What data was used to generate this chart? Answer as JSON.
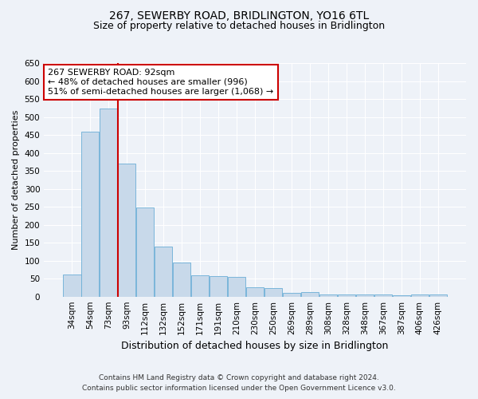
{
  "title": "267, SEWERBY ROAD, BRIDLINGTON, YO16 6TL",
  "subtitle": "Size of property relative to detached houses in Bridlington",
  "xlabel": "Distribution of detached houses by size in Bridlington",
  "ylabel": "Number of detached properties",
  "bar_color": "#c8d9ea",
  "bar_edge_color": "#6aaed6",
  "categories": [
    "34sqm",
    "54sqm",
    "73sqm",
    "93sqm",
    "112sqm",
    "132sqm",
    "152sqm",
    "171sqm",
    "191sqm",
    "210sqm",
    "230sqm",
    "250sqm",
    "269sqm",
    "289sqm",
    "308sqm",
    "328sqm",
    "348sqm",
    "367sqm",
    "387sqm",
    "406sqm",
    "426sqm"
  ],
  "values": [
    62,
    458,
    523,
    370,
    247,
    140,
    95,
    60,
    57,
    55,
    25,
    24,
    10,
    12,
    7,
    6,
    6,
    5,
    4,
    6,
    5
  ],
  "ylim": [
    0,
    650
  ],
  "yticks": [
    0,
    50,
    100,
    150,
    200,
    250,
    300,
    350,
    400,
    450,
    500,
    550,
    600,
    650
  ],
  "vline_x_idx": 2,
  "vline_color": "#cc0000",
  "annotation_text": "267 SEWERBY ROAD: 92sqm\n← 48% of detached houses are smaller (996)\n51% of semi-detached houses are larger (1,068) →",
  "annotation_box_color": "#ffffff",
  "annotation_box_edge": "#cc0000",
  "footnote1": "Contains HM Land Registry data © Crown copyright and database right 2024.",
  "footnote2": "Contains public sector information licensed under the Open Government Licence v3.0.",
  "bg_color": "#eef2f8",
  "grid_color": "#ffffff",
  "title_fontsize": 10,
  "subtitle_fontsize": 9,
  "xlabel_fontsize": 9,
  "ylabel_fontsize": 8,
  "tick_fontsize": 7.5,
  "ann_fontsize": 8,
  "footnote_fontsize": 6.5
}
